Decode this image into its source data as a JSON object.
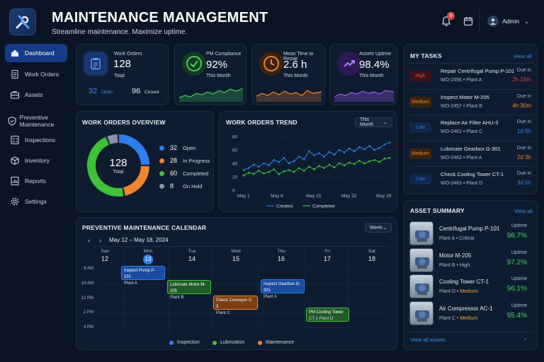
{
  "header": {
    "title": "MAINTENANCE MANAGEMENT",
    "subtitle": "Streamline maintenance. Maximize uptime.",
    "notification_count": "8",
    "user": "Admin"
  },
  "sidebar": {
    "items": [
      {
        "label": "Dashboard",
        "icon": "home-icon"
      },
      {
        "label": "Work Orders",
        "icon": "document-icon"
      },
      {
        "label": "Assets",
        "icon": "briefcase-icon"
      },
      {
        "label": "Preventive Maintenance",
        "icon": "shield-icon"
      },
      {
        "label": "Inspections",
        "icon": "checklist-icon"
      },
      {
        "label": "Inventory",
        "icon": "box-icon"
      },
      {
        "label": "Reports",
        "icon": "chart-icon"
      },
      {
        "label": "Settings",
        "icon": "gear-icon"
      }
    ]
  },
  "kpis": {
    "work_orders": {
      "label": "Work Orders",
      "value": "128",
      "sub": "Total",
      "open_value": "32",
      "open_label": "Open",
      "closed_value": "96",
      "closed_label": "Closed"
    },
    "pm_compliance": {
      "label": "PM Compliance",
      "value": "92%",
      "sub": "This Month",
      "color": "#3fd15a"
    },
    "mttr": {
      "label": "Mean Time to Repair",
      "value": "2.6 h",
      "sub": "This Month",
      "color": "#f0852d"
    },
    "uptime": {
      "label": "Assets Uptime",
      "value": "98.4%",
      "sub": "This Month",
      "color": "#9b5cf0"
    }
  },
  "overview": {
    "title": "WORK ORDERS OVERVIEW",
    "total": "128",
    "total_label": "Total",
    "legend": [
      {
        "value": "32",
        "label": "Open",
        "color": "#2f7ef0"
      },
      {
        "value": "28",
        "label": "In Progress",
        "color": "#f0852d"
      },
      {
        "value": "60",
        "label": "Completed",
        "color": "#3fc13a"
      },
      {
        "value": "8",
        "label": "On Hold",
        "color": "#8a94a6"
      }
    ]
  },
  "trend": {
    "title": "WORK ORDERS TREND",
    "range": "This Month",
    "y_ticks": [
      "0",
      "20",
      "40",
      "60",
      "80"
    ],
    "x_ticks": [
      "May 1",
      "May 8",
      "May 15",
      "May 22",
      "May 29"
    ],
    "legend_created": "Created",
    "legend_completed": "Completed"
  },
  "chart_data": {
    "type": "line",
    "ylim": [
      0,
      80
    ],
    "series": [
      {
        "name": "Created",
        "color": "#2f7ef0",
        "values": [
          30,
          33,
          38,
          35,
          40,
          37,
          45,
          42,
          48,
          40,
          43,
          50,
          46,
          58,
          52,
          55,
          50,
          57,
          53,
          60,
          56,
          62,
          58,
          64,
          61,
          66,
          60,
          63,
          68,
          71
        ]
      },
      {
        "name": "Completed",
        "color": "#3fc13a",
        "values": [
          22,
          26,
          24,
          29,
          25,
          27,
          31,
          24,
          28,
          30,
          27,
          33,
          29,
          35,
          31,
          36,
          33,
          38,
          34,
          40,
          37,
          41,
          39,
          44,
          40,
          43,
          45,
          42,
          47,
          48
        ]
      }
    ]
  },
  "tasks": {
    "title": "MY TASKS",
    "view_all": "View all",
    "items": [
      {
        "priority": "High",
        "title": "Repair Centrifugal Pump P-101",
        "sub": "WO-2456  •  Plant A",
        "due_label": "Due in",
        "due": "2h 15m",
        "color": "#e84545"
      },
      {
        "priority": "Medium",
        "title": "Inspect Motor M-205",
        "sub": "WO-2457  •  Plant B",
        "due_label": "Due in",
        "due": "4h 30m",
        "color": "#f0852d"
      },
      {
        "priority": "Low",
        "title": "Replace Air Filter AHU-3",
        "sub": "WO-2461  •  Plant C",
        "due_label": "Due in",
        "due": "1d 6h",
        "color": "#2f7ef0"
      },
      {
        "priority": "Medium",
        "title": "Lubricate Gearbox G-301",
        "sub": "WO-2462  •  Plant A",
        "due_label": "Due in",
        "due": "2d 3h",
        "color": "#f0852d"
      },
      {
        "priority": "Low",
        "title": "Check Cooling Tower CT-1",
        "sub": "WO-2463  •  Plant D",
        "due_label": "Due in",
        "due": "3d 5h",
        "color": "#2f7ef0"
      }
    ]
  },
  "assets": {
    "title": "ASSET SUMMARY",
    "view_all": "View all",
    "footer": "View all assets",
    "items": [
      {
        "name": "Centrifugal Pump P-101",
        "plant": "Plant A",
        "crit": "Critical",
        "crit_color": "#aeb9c9",
        "uptime_label": "Uptime",
        "uptime": "98.7%"
      },
      {
        "name": "Motor M-205",
        "plant": "Plant B",
        "crit": "High",
        "crit_color": "#aeb9c9",
        "uptime_label": "Uptime",
        "uptime": "97.2%"
      },
      {
        "name": "Cooling Tower CT-1",
        "plant": "Plant D",
        "crit": "Medium",
        "crit_color": "#f0a52d",
        "uptime_label": "Uptime",
        "uptime": "96.1%"
      },
      {
        "name": "Air Compressor AC-1",
        "plant": "Plant C",
        "crit": "Medium",
        "crit_color": "#f0a52d",
        "uptime_label": "Uptime",
        "uptime": "95.4%"
      }
    ]
  },
  "calendar": {
    "title": "PREVENTIVE MAINTENANCE CALENDAR",
    "view": "Week",
    "range": "May 12 – May 18, 2024",
    "days": [
      {
        "name": "Sun",
        "date": "12"
      },
      {
        "name": "Mon",
        "date": "13"
      },
      {
        "name": "Tue",
        "date": "14"
      },
      {
        "name": "Wed",
        "date": "15"
      },
      {
        "name": "Thu",
        "date": "16"
      },
      {
        "name": "Fri",
        "date": "17"
      },
      {
        "name": "Sat",
        "date": "18"
      }
    ],
    "times": [
      "8 AM",
      "10 AM",
      "12 PM",
      "2 PM",
      "4 PM"
    ],
    "events": [
      {
        "title": "Inspect Pump P-101",
        "sub": "Plant A"
      },
      {
        "title": "Lubricate Motor M-205",
        "sub": "Plant B"
      },
      {
        "title": "Check Conveyor C-3",
        "sub": "Plant C"
      },
      {
        "title": "Inspect Gearbox G-301",
        "sub": "Plant A"
      },
      {
        "title": "PM Cooling Tower",
        "sub": "CT-1    Plant D"
      }
    ],
    "legend": [
      "Inspection",
      "Lubrication",
      "Maintenance"
    ]
  }
}
